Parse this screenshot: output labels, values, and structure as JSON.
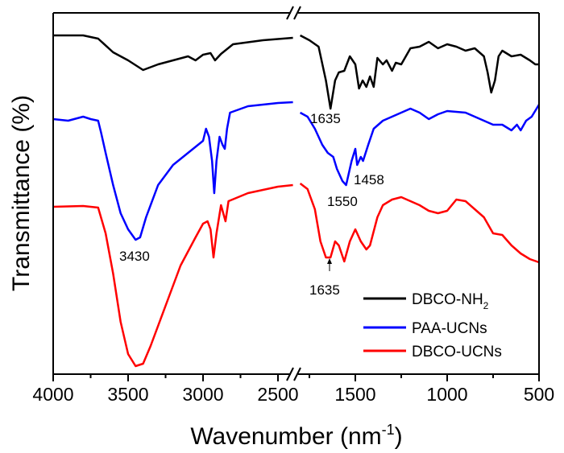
{
  "chart_data": {
    "type": "line",
    "title": "",
    "xlabel": "Wavenumber (nm",
    "xlabel_sup": "-1",
    "xlabel_close": ")",
    "ylabel": "Transmittance (%)",
    "x_segments": [
      [
        4000,
        2400
      ],
      [
        1800,
        500
      ]
    ],
    "xticks_left": [
      "4000",
      "3500",
      "3000",
      "2500"
    ],
    "xticks_right": [
      "1500",
      "1000",
      "500"
    ],
    "ylim": [
      0,
      449
    ],
    "y_units": "arbitrary (offset spectra)",
    "legend_position": "bottom-right",
    "series": [
      {
        "name": "DBCO-NH",
        "name_sub": "2",
        "color": "#000000",
        "left": {
          "x": [
            4000,
            3800,
            3700,
            3600,
            3500,
            3400,
            3300,
            3200,
            3100,
            3050,
            3000,
            2950,
            2920,
            2880,
            2800,
            2600,
            2400
          ],
          "y": [
            421,
            421,
            417,
            400,
            390,
            378,
            385,
            390,
            395,
            390,
            397,
            399,
            390,
            398,
            410,
            415,
            418
          ]
        },
        "right": {
          "x": [
            1800,
            1750,
            1700,
            1660,
            1635,
            1610,
            1590,
            1560,
            1530,
            1500,
            1480,
            1460,
            1440,
            1420,
            1400,
            1380,
            1350,
            1330,
            1300,
            1280,
            1250,
            1200,
            1150,
            1100,
            1050,
            1000,
            950,
            900,
            850,
            800,
            780,
            760,
            740,
            720,
            700,
            650,
            600,
            550,
            520,
            500
          ],
          "y": [
            421,
            415,
            407,
            365,
            330,
            365,
            375,
            377,
            395,
            385,
            355,
            365,
            357,
            370,
            357,
            393,
            385,
            390,
            377,
            387,
            385,
            405,
            407,
            413,
            405,
            410,
            407,
            402,
            405,
            395,
            375,
            350,
            365,
            395,
            402,
            395,
            397,
            390,
            385,
            385
          ]
        }
      },
      {
        "name": "PAA-UCNs",
        "name_sub": "",
        "color": "#0000ff",
        "left": {
          "x": [
            4000,
            3900,
            3800,
            3750,
            3700,
            3680,
            3650,
            3600,
            3550,
            3500,
            3450,
            3420,
            3380,
            3300,
            3200,
            3100,
            3000,
            2980,
            2960,
            2940,
            2925,
            2910,
            2890,
            2870,
            2855,
            2840,
            2820,
            2700,
            2500,
            2400
          ],
          "y": [
            317,
            315,
            320,
            317,
            315,
            300,
            275,
            235,
            200,
            180,
            167,
            170,
            195,
            235,
            260,
            275,
            290,
            305,
            295,
            265,
            225,
            265,
            295,
            285,
            280,
            305,
            325,
            333,
            337,
            338
          ]
        },
        "right": {
          "x": [
            1800,
            1760,
            1720,
            1680,
            1650,
            1620,
            1600,
            1570,
            1550,
            1520,
            1500,
            1490,
            1470,
            1458,
            1430,
            1400,
            1350,
            1300,
            1200,
            1150,
            1100,
            1050,
            1000,
            900,
            850,
            800,
            750,
            700,
            650,
            620,
            600,
            570,
            540,
            500
          ],
          "y": [
            325,
            320,
            305,
            285,
            275,
            270,
            255,
            240,
            235,
            265,
            280,
            260,
            270,
            265,
            285,
            305,
            315,
            320,
            330,
            325,
            317,
            323,
            327,
            325,
            320,
            315,
            310,
            310,
            303,
            310,
            303,
            315,
            320,
            335
          ]
        }
      },
      {
        "name": "DBCO-UCNs",
        "name_sub": "",
        "color": "#ff0000",
        "left": {
          "x": [
            4000,
            3800,
            3700,
            3650,
            3600,
            3550,
            3500,
            3450,
            3400,
            3350,
            3250,
            3150,
            3050,
            3000,
            2970,
            2950,
            2930,
            2910,
            2880,
            2850,
            2830,
            2700,
            2500,
            2400
          ],
          "y": [
            208,
            209,
            207,
            175,
            125,
            65,
            25,
            10,
            13,
            35,
            85,
            135,
            170,
            187,
            190,
            180,
            145,
            175,
            210,
            190,
            215,
            225,
            233,
            235
          ]
        },
        "right": {
          "x": [
            1800,
            1760,
            1720,
            1690,
            1660,
            1635,
            1610,
            1590,
            1560,
            1530,
            1500,
            1470,
            1440,
            1420,
            1380,
            1350,
            1300,
            1250,
            1200,
            1150,
            1100,
            1050,
            1000,
            950,
            900,
            850,
            800,
            750,
            700,
            650,
            600,
            550,
            500
          ],
          "y": [
            237,
            230,
            205,
            165,
            145,
            145,
            165,
            160,
            140,
            165,
            180,
            165,
            155,
            160,
            195,
            210,
            217,
            220,
            215,
            210,
            203,
            200,
            203,
            217,
            215,
            205,
            195,
            175,
            173,
            160,
            150,
            143,
            139
          ]
        }
      }
    ],
    "annotations": [
      {
        "text": "3430",
        "x": 3430,
        "series": "PAA-UCNs"
      },
      {
        "text": "1635",
        "x": 1635,
        "series": "DBCO-NH2"
      },
      {
        "text": "1458",
        "x": 1458,
        "series": "PAA-UCNs"
      },
      {
        "text": "1550",
        "x": 1550,
        "series": "PAA-UCNs"
      },
      {
        "text": "1635",
        "x": 1635,
        "series": "DBCO-UCNs",
        "arrow": true
      }
    ]
  }
}
